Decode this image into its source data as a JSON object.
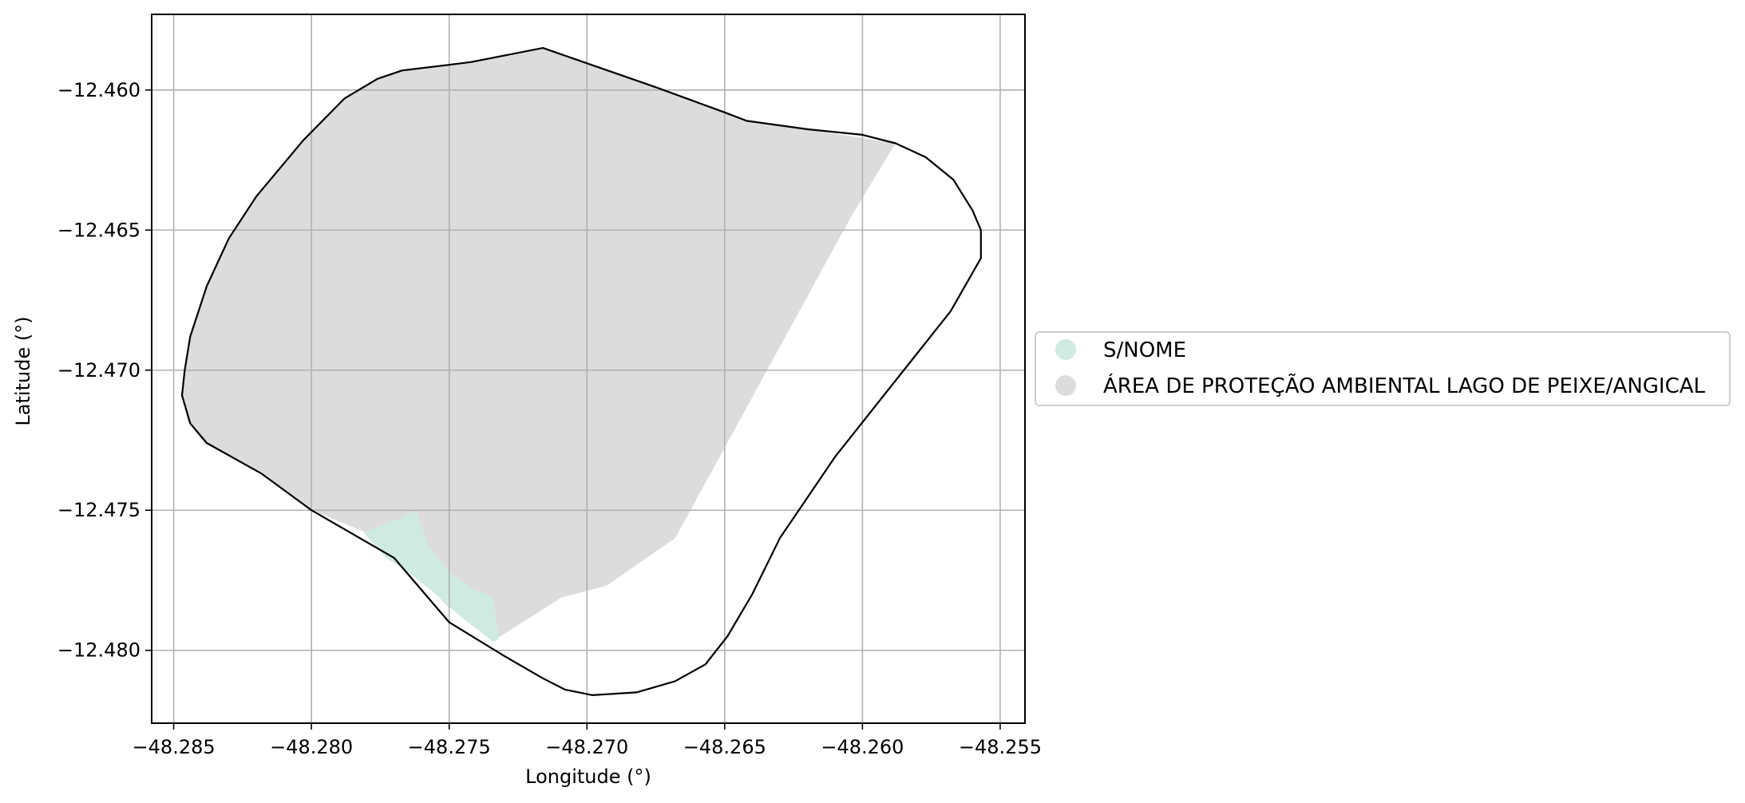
{
  "map": {
    "x_axis": {
      "label": "Longitude (°)",
      "lim": [
        -48.2858,
        -48.2541
      ],
      "ticks": [
        -48.285,
        -48.28,
        -48.275,
        -48.27,
        -48.265,
        -48.26,
        -48.255
      ],
      "tick_labels": [
        "−48.285",
        "−48.280",
        "−48.275",
        "−48.270",
        "−48.265",
        "−48.260",
        "−48.255"
      ]
    },
    "y_axis": {
      "label": "Latitude (°)",
      "lim": [
        -12.4826,
        -12.4573
      ],
      "ticks": [
        -12.46,
        -12.465,
        -12.47,
        -12.475,
        -12.48
      ],
      "tick_labels": [
        "−12.460",
        "−12.465",
        "−12.470",
        "−12.475",
        "−12.480"
      ]
    },
    "grid": true,
    "legend": {
      "placement": "right of plot, vertically centered",
      "entries": [
        {
          "label": "S/NOME",
          "color": "#cfebe0"
        },
        {
          "label": "ÁREA DE PROTEÇÃO AMBIENTAL LAGO DE PEIXE/ANGICAL",
          "color": "#dcdcdc"
        }
      ]
    },
    "colors": {
      "background": "#ffffff",
      "grid": "#b0b0b0",
      "outline": "#000000",
      "s_nome": "#cfebe0",
      "apa": "#dcdcdc"
    },
    "layers": {
      "apa": {
        "name": "ÁREA DE PROTEÇÃO AMBIENTAL LAGO DE PEIXE/ANGICAL",
        "coords": [
          [
            -48.2846,
            -12.47
          ],
          [
            -48.2844,
            -12.4688
          ],
          [
            -48.2838,
            -12.467
          ],
          [
            -48.283,
            -12.4653
          ],
          [
            -48.282,
            -12.4638
          ],
          [
            -48.2803,
            -12.4618
          ],
          [
            -48.2788,
            -12.4603
          ],
          [
            -48.2776,
            -12.4596
          ],
          [
            -48.2767,
            -12.4593
          ],
          [
            -48.275,
            -12.4591
          ],
          [
            -48.2742,
            -12.459
          ],
          [
            -48.2716,
            -12.4585
          ],
          [
            -48.2675,
            -12.4599
          ],
          [
            -48.265,
            -12.4608
          ],
          [
            -48.2642,
            -12.4611
          ],
          [
            -48.262,
            -12.4614
          ],
          [
            -48.2588,
            -12.4619
          ],
          [
            -48.2604,
            -12.4645
          ],
          [
            -48.2668,
            -12.476
          ],
          [
            -48.2693,
            -12.4777
          ],
          [
            -48.2709,
            -12.4781
          ],
          [
            -48.2733,
            -12.4796
          ],
          [
            -48.274,
            -12.479
          ],
          [
            -48.2751,
            -12.4784
          ],
          [
            -48.2758,
            -12.4776
          ],
          [
            -48.2762,
            -12.4767
          ],
          [
            -48.277,
            -12.4755
          ],
          [
            -48.278,
            -12.4758
          ],
          [
            -48.28,
            -12.475
          ],
          [
            -48.2818,
            -12.4737
          ],
          [
            -48.2839,
            -12.4726
          ],
          [
            -48.2845,
            -12.4718
          ],
          [
            -48.2847,
            -12.4708
          ]
        ]
      },
      "s_nome": {
        "name": "S/NOME",
        "coords": [
          [
            -48.2762,
            -12.475
          ],
          [
            -48.2758,
            -12.4762
          ],
          [
            -48.2751,
            -12.4771
          ],
          [
            -48.2742,
            -12.4778
          ],
          [
            -48.2734,
            -12.4781
          ],
          [
            -48.2732,
            -12.4796
          ],
          [
            -48.2734,
            -12.4797
          ],
          [
            -48.2747,
            -12.4787
          ],
          [
            -48.2756,
            -12.4779
          ],
          [
            -48.2765,
            -12.4772
          ],
          [
            -48.2773,
            -12.4767
          ],
          [
            -48.2781,
            -12.4758
          ],
          [
            -48.2776,
            -12.4756
          ],
          [
            -48.2768,
            -12.4753
          ]
        ]
      },
      "boundary": {
        "coords": [
          [
            -48.2716,
            -12.4585
          ],
          [
            -48.2675,
            -12.4599
          ],
          [
            -48.265,
            -12.4608
          ],
          [
            -48.2642,
            -12.4611
          ],
          [
            -48.262,
            -12.4614
          ],
          [
            -48.26,
            -12.4616
          ],
          [
            -48.2588,
            -12.4619
          ],
          [
            -48.2577,
            -12.4624
          ],
          [
            -48.2567,
            -12.4632
          ],
          [
            -48.256,
            -12.4643
          ],
          [
            -48.2557,
            -12.465
          ],
          [
            -48.2557,
            -12.466
          ],
          [
            -48.2568,
            -12.4679
          ],
          [
            -48.2589,
            -12.4705
          ],
          [
            -48.261,
            -12.4731
          ],
          [
            -48.263,
            -12.476
          ],
          [
            -48.264,
            -12.478
          ],
          [
            -48.2649,
            -12.4795
          ],
          [
            -48.2657,
            -12.4805
          ],
          [
            -48.2668,
            -12.4811
          ],
          [
            -48.2682,
            -12.4815
          ],
          [
            -48.2698,
            -12.4816
          ],
          [
            -48.2708,
            -12.4814
          ],
          [
            -48.2716,
            -12.481
          ],
          [
            -48.273,
            -12.4802
          ],
          [
            -48.275,
            -12.479
          ],
          [
            -48.277,
            -12.4767
          ],
          [
            -48.28,
            -12.475
          ],
          [
            -48.2818,
            -12.4737
          ],
          [
            -48.2838,
            -12.4726
          ],
          [
            -48.2844,
            -12.4719
          ],
          [
            -48.2847,
            -12.4709
          ],
          [
            -48.2846,
            -12.47
          ],
          [
            -48.2844,
            -12.4688
          ],
          [
            -48.2838,
            -12.467
          ],
          [
            -48.283,
            -12.4653
          ],
          [
            -48.282,
            -12.4638
          ],
          [
            -48.2803,
            -12.4618
          ],
          [
            -48.2788,
            -12.4603
          ],
          [
            -48.2776,
            -12.4596
          ],
          [
            -48.2767,
            -12.4593
          ],
          [
            -48.275,
            -12.4591
          ],
          [
            -48.2742,
            -12.459
          ],
          [
            -48.2716,
            -12.4585
          ]
        ]
      }
    }
  }
}
